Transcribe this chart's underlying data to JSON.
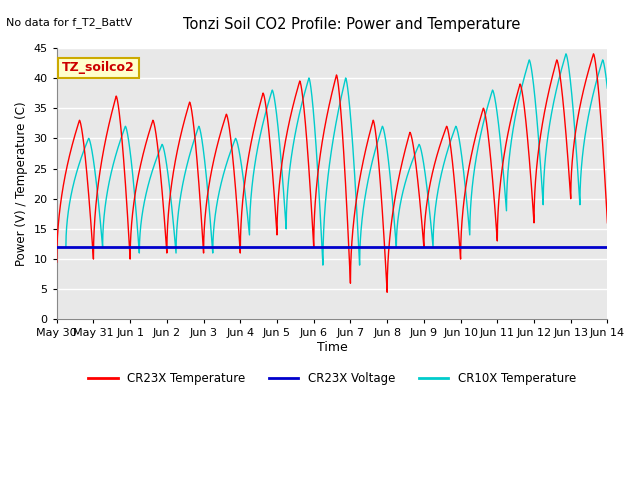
{
  "title": "Tonzi Soil CO2 Profile: Power and Temperature",
  "subtitle": "No data for f_T2_BattV",
  "xlabel": "Time",
  "ylabel": "Power (V) / Temperature (C)",
  "ylim": [
    0,
    45
  ],
  "yticks": [
    0,
    5,
    10,
    15,
    20,
    25,
    30,
    35,
    40,
    45
  ],
  "plot_bg": "#e8e8e8",
  "fig_bg": "#ffffff",
  "grid_color": "#ffffff",
  "annotation_label": "TZ_soilco2",
  "annotation_edge_color": "#ccaa00",
  "annotation_face_color": "#ffffcc",
  "annotation_text_color": "#cc0000",
  "cr23x_temp_color": "#ff0000",
  "cr23x_volt_color": "#0000cc",
  "cr10x_temp_color": "#00cccc",
  "legend_labels": [
    "CR23X Temperature",
    "CR23X Voltage",
    "CR10X Temperature"
  ],
  "x_tick_labels": [
    "May 30",
    "May 31",
    "Jun 1",
    "Jun 2",
    "Jun 3",
    "Jun 4",
    "Jun 5",
    "Jun 6",
    "Jun 7",
    "Jun 8",
    "Jun 9",
    "Jun 10",
    "Jun 11",
    "Jun 12",
    "Jun 13",
    "Jun 14"
  ],
  "voltage_value": 12.0,
  "red_peaks": [
    33,
    37,
    33,
    36,
    34,
    37.5,
    39.5,
    40.5,
    33,
    31,
    32,
    35,
    39,
    43,
    44,
    43
  ],
  "red_mins": [
    9.5,
    10,
    10,
    11,
    11,
    11,
    14,
    12,
    6,
    4.5,
    12,
    10,
    13,
    16,
    20,
    16
  ],
  "cyan_peaks": [
    30,
    32,
    29,
    32,
    30,
    38,
    40,
    40,
    32,
    29,
    32,
    38,
    43,
    44,
    43,
    43
  ],
  "cyan_mins": [
    12,
    12,
    11,
    11,
    11,
    14,
    15,
    9,
    9,
    12,
    12,
    14,
    18,
    19,
    19,
    19
  ],
  "cyan_lag": 0.25
}
